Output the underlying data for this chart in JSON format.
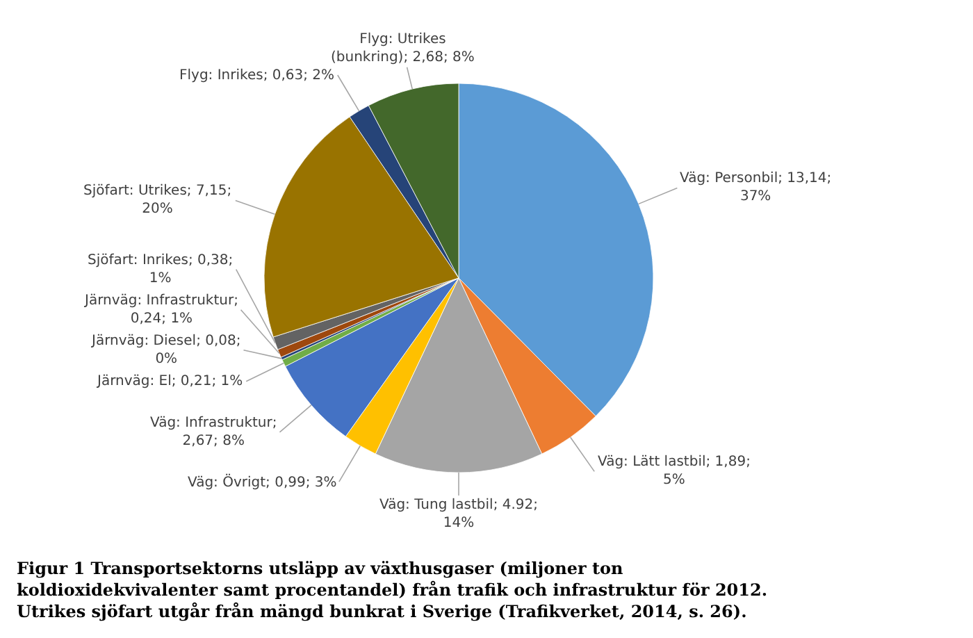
{
  "chart_data": {
    "type": "pie",
    "categories": [
      "Väg: Personbil; 13,14; 37%",
      "Väg: Lätt lastbil; 1,89; 5%",
      "Väg: Tung lastbil; 4.92; 14%",
      "Väg: Övrigt; 0,99; 3%",
      "Väg: Infrastruktur; 2,67; 8%",
      "Järnväg: El; 0,21; 1%",
      "Järnväg: Diesel; 0,08; 0%",
      "Järnväg: Infrastruktur; 0,24; 1%",
      "Sjöfart: Inrikes; 0,38; 1%",
      "Sjöfart: Utrikes; 7,15; 20%",
      "Flyg: Inrikes; 0,63; 2%",
      "Flyg: Utrikes (bunkring); 2,68; 8%"
    ],
    "values": [
      13.14,
      1.89,
      4.92,
      0.99,
      2.67,
      0.21,
      0.08,
      0.24,
      0.38,
      7.15,
      0.63,
      2.68
    ],
    "colors": [
      "#5b9bd5",
      "#ed7d31",
      "#a5a5a5",
      "#ffc000",
      "#4472c4",
      "#70ad47",
      "#264478",
      "#9e480e",
      "#636363",
      "#997300",
      "#264478",
      "#43682b"
    ],
    "annotations": [
      "Figur 1 Transportsektorns utsläpp av växthusgaser (miljoner ton koldioxidekvivalenter samt procentandel) från trafik och infrastruktur för 2012. Utrikes sjöfart utgår från mängd bunkrat i Sverige (Trafikverket, 2014, s. 26)."
    ],
    "legend": false
  }
}
